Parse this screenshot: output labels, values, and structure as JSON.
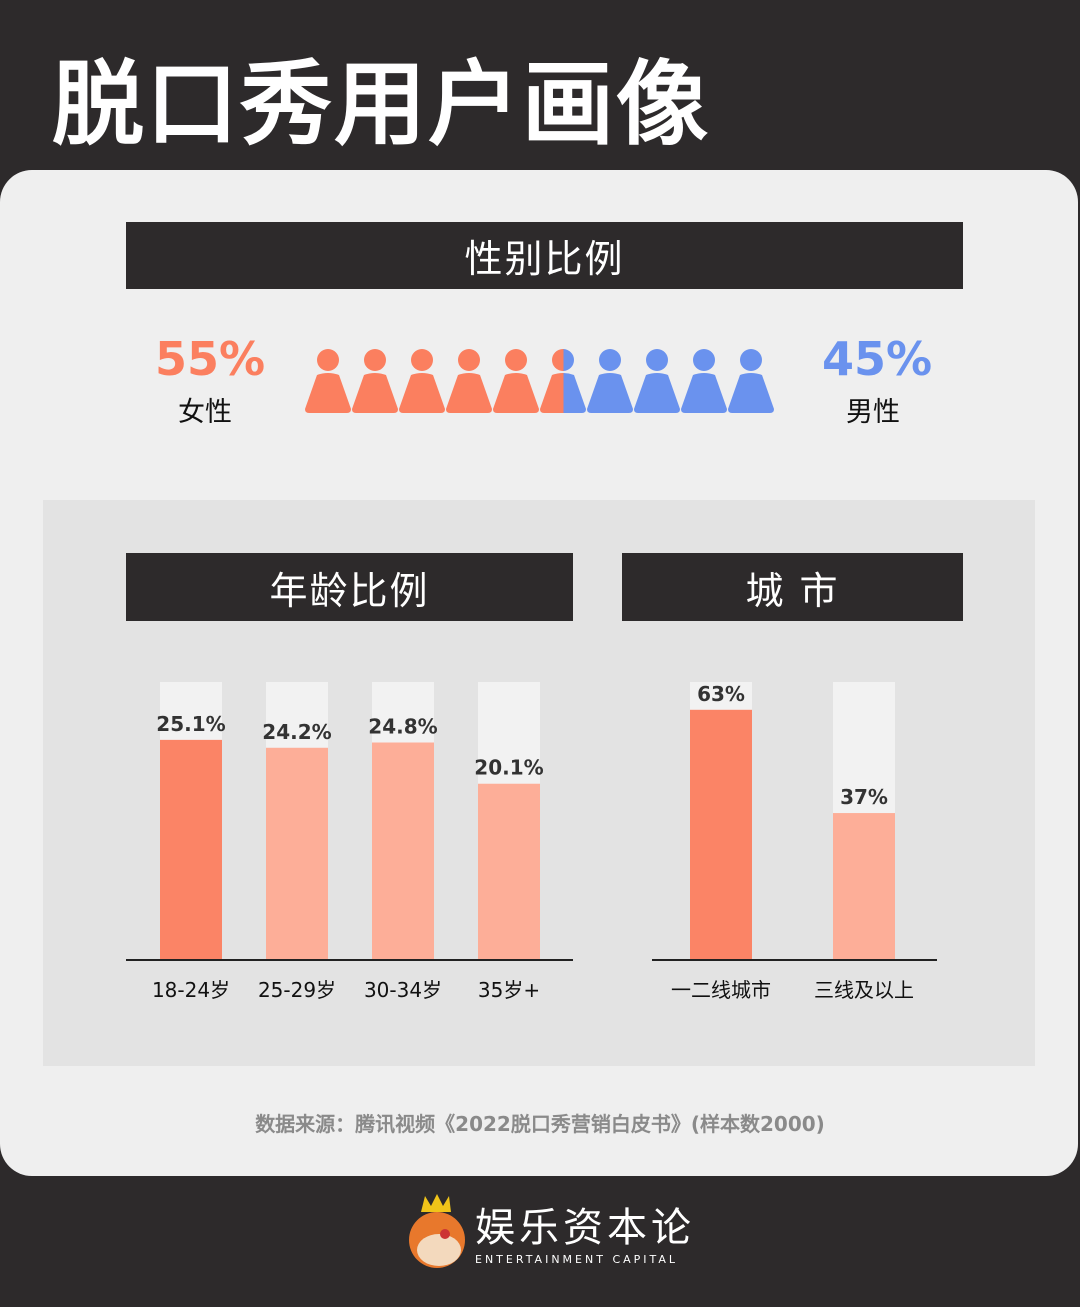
{
  "title": "脱口秀用户画像",
  "gender": {
    "header": "性别比例",
    "female_pct": "55%",
    "female_label": "女性",
    "male_pct": "45%",
    "male_label": "男性",
    "female_share": 55,
    "female_color": "#fb7f5f",
    "male_color": "#6a92ee"
  },
  "chart_data": [
    {
      "type": "bar",
      "title": "年龄比例",
      "categories": [
        "18-24岁",
        "25-29岁",
        "30-34岁",
        "35岁+"
      ],
      "values": [
        25.1,
        24.2,
        24.8,
        20.1
      ],
      "labels": [
        "25.1%",
        "24.2%",
        "24.8%",
        "20.1%"
      ],
      "ylim": [
        0,
        31.7
      ],
      "colors": [
        "#fb8466",
        "#fdae98",
        "#fdae98",
        "#fdae98"
      ]
    },
    {
      "type": "bar",
      "title": "城 市",
      "categories": [
        "一二线城市",
        "三线及以上"
      ],
      "values": [
        63,
        37
      ],
      "labels": [
        "63%",
        "37%"
      ],
      "ylim": [
        0,
        70
      ],
      "colors": [
        "#fb8466",
        "#fdae98"
      ]
    }
  ],
  "source": "数据来源：腾讯视频《2022脱口秀营销白皮书》(样本数2000)",
  "logo": {
    "cn": "娱乐资本论",
    "en": "ENTERTAINMENT CAPITAL"
  }
}
